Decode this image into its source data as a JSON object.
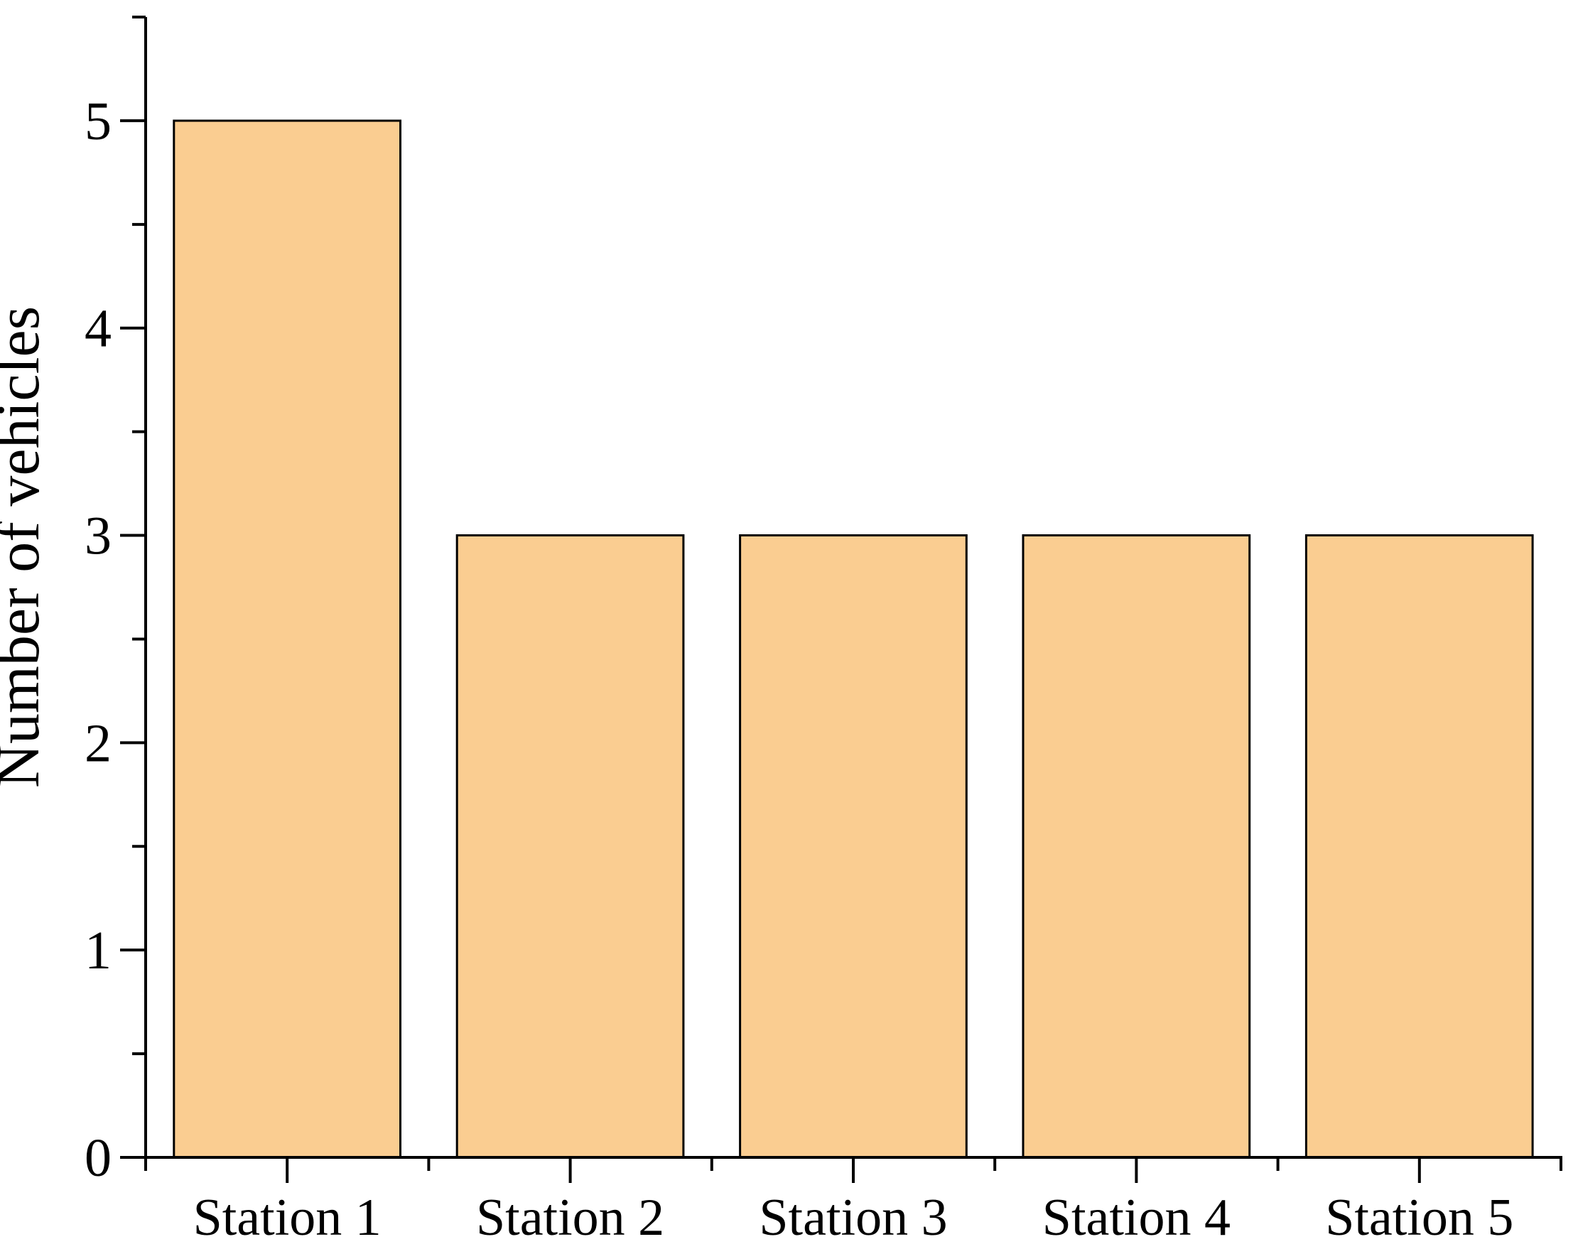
{
  "chart_data": {
    "type": "bar",
    "title": "",
    "categories": [
      "Station 1",
      "Station 2",
      "Station 3",
      "Station 4",
      "Station 5"
    ],
    "values": [
      5,
      3,
      3,
      3,
      3
    ],
    "xlabel": "",
    "ylabel": "Number of vehicles",
    "ylim": [
      0,
      5.5
    ],
    "yticks_major": [
      0,
      1,
      2,
      3,
      4,
      5
    ],
    "ytick_labels": [
      "0",
      "1",
      "2",
      "3",
      "4",
      "5"
    ],
    "yticks_minor": [
      0.5,
      1.5,
      2.5,
      3.5,
      4.5,
      5.5
    ],
    "grid": false,
    "legend": null,
    "colors": {
      "bar_fill": "#FACD91",
      "bar_stroke": "#000000",
      "axis": "#000000",
      "text": "#000000",
      "background": "#FFFFFF"
    }
  }
}
